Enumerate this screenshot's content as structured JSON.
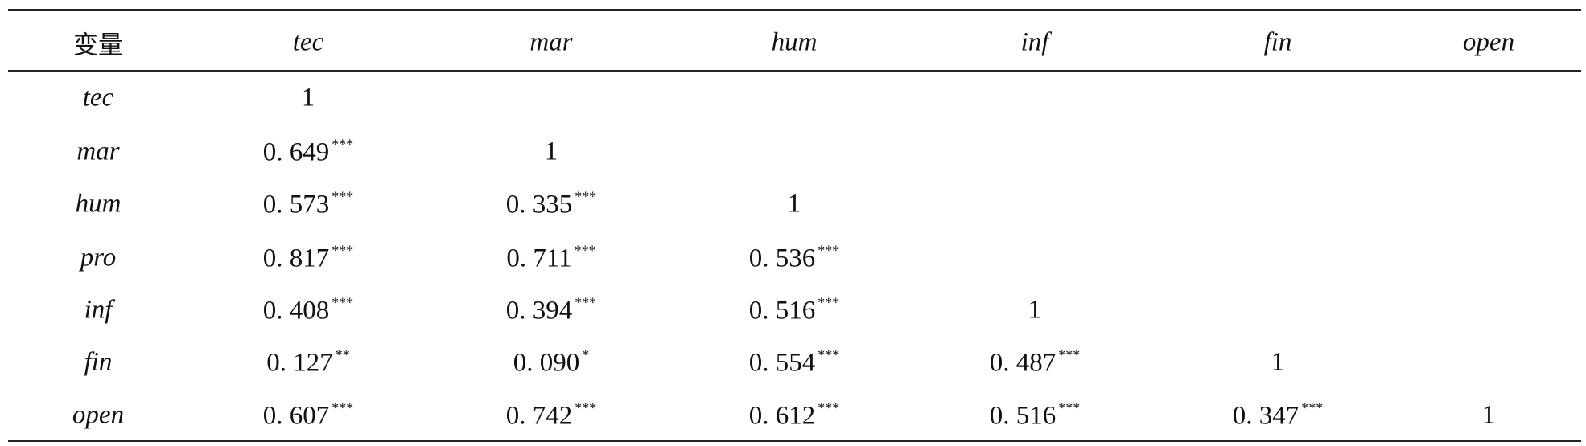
{
  "table": {
    "header": [
      "变量",
      "tec",
      "mar",
      "hum",
      "inf",
      "fin",
      "open"
    ],
    "rows": [
      {
        "label": "tec",
        "cells": [
          {
            "value": "1"
          }
        ]
      },
      {
        "label": "mar",
        "cells": [
          {
            "value": "0. 649",
            "stars": "***"
          },
          {
            "value": "1"
          }
        ]
      },
      {
        "label": "hum",
        "cells": [
          {
            "value": "0. 573",
            "stars": "***"
          },
          {
            "value": "0. 335",
            "stars": "***"
          },
          {
            "value": "1"
          }
        ]
      },
      {
        "label": "pro",
        "cells": [
          {
            "value": "0. 817",
            "stars": "***"
          },
          {
            "value": "0. 711",
            "stars": "***"
          },
          {
            "value": "0. 536",
            "stars": "***"
          }
        ]
      },
      {
        "label": "inf",
        "cells": [
          {
            "value": "0. 408",
            "stars": "***"
          },
          {
            "value": "0. 394",
            "stars": "***"
          },
          {
            "value": "0. 516",
            "stars": "***"
          },
          {
            "value": "1"
          }
        ]
      },
      {
        "label": "fin",
        "cells": [
          {
            "value": "0. 127",
            "stars": "**"
          },
          {
            "value": "0. 090",
            "stars": "*"
          },
          {
            "value": "0. 554",
            "stars": "***"
          },
          {
            "value": "0. 487",
            "stars": "***"
          },
          {
            "value": "1"
          }
        ]
      },
      {
        "label": "open",
        "cells": [
          {
            "value": "0. 607",
            "stars": "***"
          },
          {
            "value": "0. 742",
            "stars": "***"
          },
          {
            "value": "0. 612",
            "stars": "***"
          },
          {
            "value": "0. 516",
            "stars": "***"
          },
          {
            "value": "0. 347",
            "stars": "***"
          },
          {
            "value": "1"
          }
        ]
      }
    ]
  }
}
